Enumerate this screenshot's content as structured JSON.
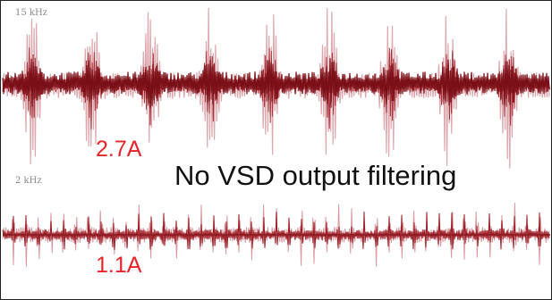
{
  "top_trace": {
    "frequency": "15 kHz",
    "current": "2.7A"
  },
  "caption": "No VSD output filtering",
  "bottom_trace": {
    "frequency": "2 kHz",
    "current": "1.1A"
  }
}
